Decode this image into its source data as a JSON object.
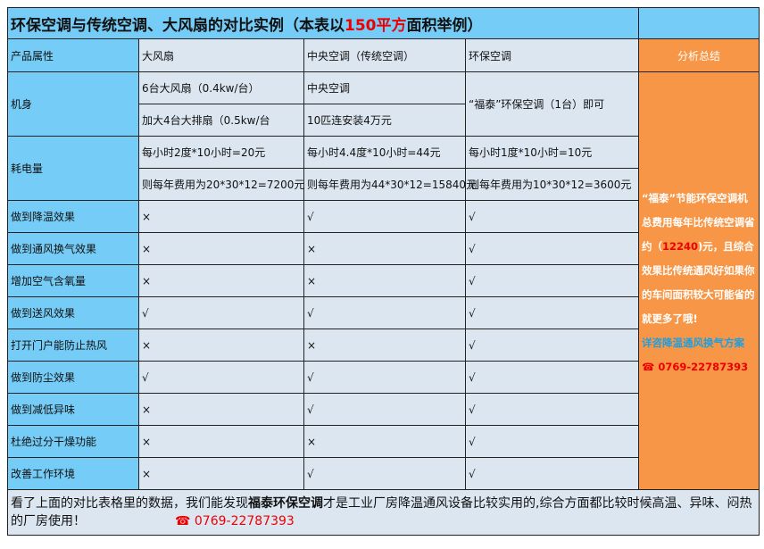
{
  "title": {
    "pre": "环保空调与传统空调、大风扇的对比实例（本表以",
    "highlight": "150平方",
    "post": "面积举例）"
  },
  "header": {
    "attr": "产品属性",
    "fan": "大风扇",
    "central": "中央空调（传统空调）",
    "eco": "环保空调",
    "summary": "分析总结"
  },
  "body_row": {
    "label": "机身",
    "fan": [
      "6台大风扇（0.4kw/台）",
      "加大4台大排扇（0.5kw/台"
    ],
    "central": [
      "中央空调",
      "10匹连安装4万元"
    ],
    "eco": "“福泰”环保空调（1台）即可"
  },
  "power_row": {
    "label": "耗电量",
    "fan": [
      "每小时2度*10小时=20元",
      "则每年费用为20*30*12=7200元"
    ],
    "central": [
      "每小时4.4度*10小时=44元",
      "则每年费用为44*30*12=15840元"
    ],
    "eco": [
      "每小时1度*10小时=10元",
      "则每年费用为10*30*12=3600元"
    ]
  },
  "rows": [
    {
      "label": "做到降温效果",
      "fan": "×",
      "central": "√",
      "eco": "√"
    },
    {
      "label": "做到通风换气效果",
      "fan": "×",
      "central": "×",
      "eco": "√"
    },
    {
      "label": "增加空气含氧量",
      "fan": "×",
      "central": "×",
      "eco": "√"
    },
    {
      "label": "做到送风效果",
      "fan": "√",
      "central": "√",
      "eco": "√"
    },
    {
      "label": "打开门户能防止热风",
      "fan": "×",
      "central": "×",
      "eco": "√"
    },
    {
      "label": "做到防尘效果",
      "fan": "√",
      "central": "√",
      "eco": "√"
    },
    {
      "label": "做到减低异味",
      "fan": "×",
      "central": "√",
      "eco": "√"
    },
    {
      "label": "杜绝过分干燥功能",
      "fan": "×",
      "central": "×",
      "eco": "√"
    },
    {
      "label": "改善工作环境",
      "fan": "×",
      "central": "√",
      "eco": "√"
    }
  ],
  "summary": {
    "p1": "“福泰”节能环保空调机总费用每年比传统空调省约（",
    "amount": "12240",
    "p2": ")元，且综合效果比传统通风好如果你的车间面积较大可能省的就更多了哦!",
    "link": "详咨降温通风换气方案",
    "phone_icon": "phone-icon",
    "phone": "☎ 0769-22787393"
  },
  "footer": {
    "pre": "看了上面的对比表格里的数据，我们能发现",
    "brand": "福泰环保空调",
    "post": "才是工业厂房降温通风设备比较实用的,综合方面都比较时候高温、异味、闷热的厂房使用！",
    "phone": "☎ 0769-22787393"
  },
  "colors": {
    "blue": "#75cdf7",
    "cell": "#dce6f1",
    "orange": "#f79646",
    "red": "#ee0000"
  }
}
